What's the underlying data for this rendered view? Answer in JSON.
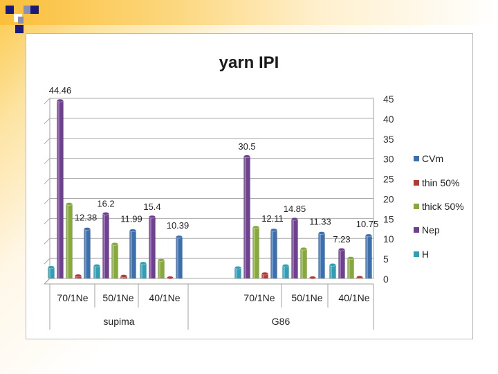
{
  "chart_data": {
    "type": "bar",
    "title": "yarn IPI",
    "xlabel": "",
    "ylabel": "",
    "ylim": [
      0,
      45
    ],
    "yticks": [
      0,
      5,
      10,
      15,
      20,
      25,
      30,
      35,
      40,
      45
    ],
    "grid": true,
    "legend_position": "right",
    "categories": [
      "70/1Ne",
      "50/1Ne",
      "40/1Ne",
      "70/1Ne",
      "50/1Ne",
      "40/1Ne"
    ],
    "groups": [
      {
        "label": "supima",
        "categories": [
          "70/1Ne",
          "50/1Ne",
          "40/1Ne"
        ]
      },
      {
        "label": "G86",
        "categories": [
          "70/1Ne",
          "50/1Ne",
          "40/1Ne"
        ]
      }
    ],
    "series": [
      {
        "name": "H",
        "color": "#2f9fb6",
        "values": [
          2.8,
          3.2,
          3.8,
          2.7,
          3.2,
          3.4
        ]
      },
      {
        "name": "Nep",
        "color": "#6f3f92",
        "values": [
          44.46,
          16.2,
          15.4,
          30.5,
          14.85,
          7.23
        ]
      },
      {
        "name": "thick 50%",
        "color": "#86a93a",
        "values": [
          18.6,
          8.6,
          4.6,
          12.8,
          7.4,
          5.1
        ]
      },
      {
        "name": "thin 50%",
        "color": "#b23a37",
        "values": [
          0.7,
          0.6,
          0.2,
          1.2,
          0.2,
          0.3
        ]
      },
      {
        "name": "CVm",
        "color": "#3b6fb0",
        "values": [
          12.38,
          11.99,
          10.39,
          12.11,
          11.33,
          10.75
        ]
      }
    ],
    "legend_order": [
      "CVm",
      "thin 50%",
      "thick 50%",
      "Nep",
      "H"
    ],
    "data_labels": [
      {
        "text": "44.46",
        "series": "Nep",
        "index": 0
      },
      {
        "text": "12.38",
        "series": "CVm",
        "index": 0
      },
      {
        "text": "16.2",
        "series": "Nep",
        "index": 1
      },
      {
        "text": "11.99",
        "series": "CVm",
        "index": 1
      },
      {
        "text": "15.4",
        "series": "Nep",
        "index": 2
      },
      {
        "text": "10.39",
        "series": "CVm",
        "index": 2
      },
      {
        "text": "30.5",
        "series": "Nep",
        "index": 3
      },
      {
        "text": "12.11",
        "series": "CVm",
        "index": 3
      },
      {
        "text": "14.85",
        "series": "Nep",
        "index": 4
      },
      {
        "text": "11.33",
        "series": "CVm",
        "index": 4
      },
      {
        "text": "7.23",
        "series": "Nep",
        "index": 5
      },
      {
        "text": "10.75",
        "series": "CVm",
        "index": 5
      }
    ]
  }
}
